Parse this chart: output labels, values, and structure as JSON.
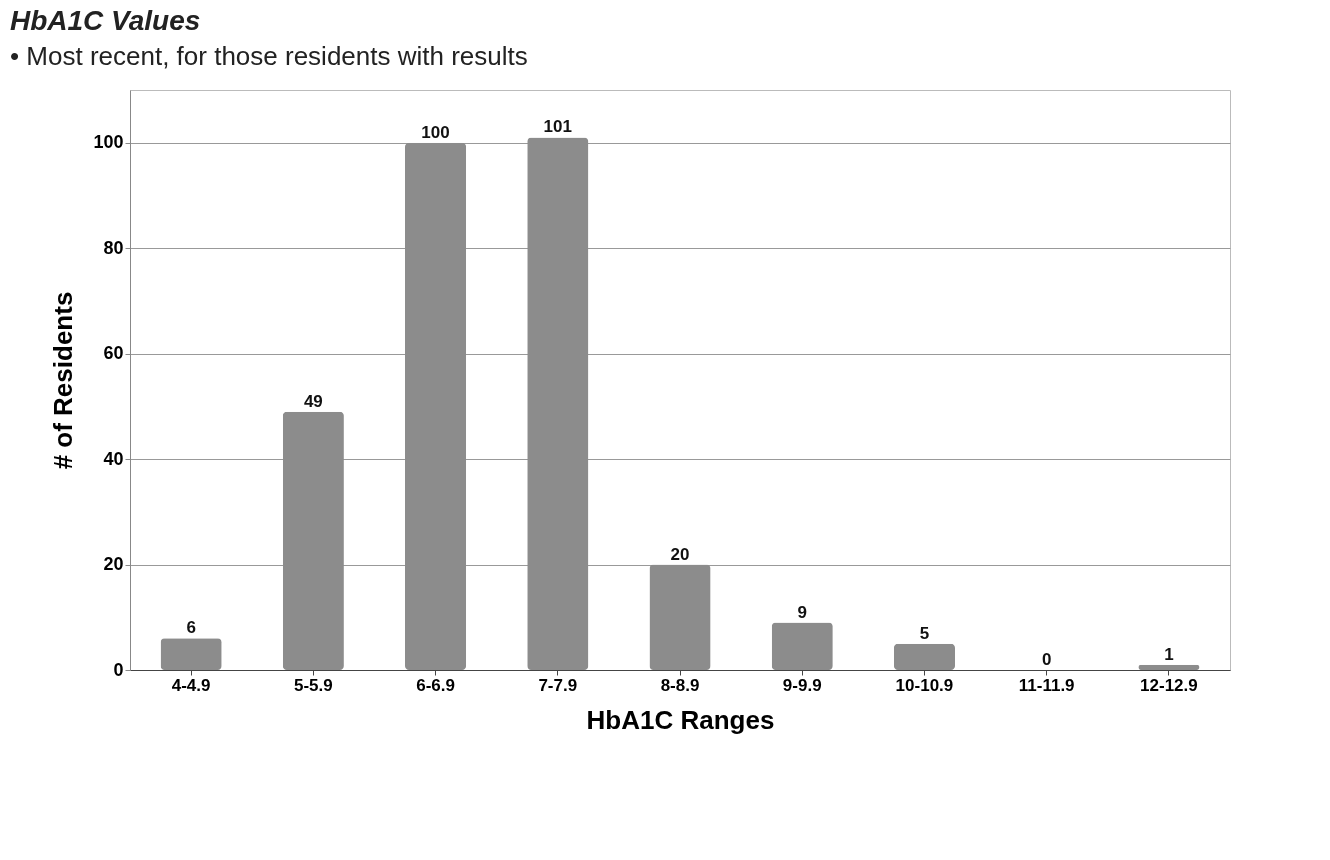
{
  "chart_data": {
    "type": "bar",
    "title": "HbA1C Values",
    "subtitle": "• Most recent, for those residents with results",
    "xlabel": "HbA1C Ranges",
    "ylabel": "# of Residents",
    "categories": [
      "4-4.9",
      "5-5.9",
      "6-6.9",
      "7-7.9",
      "8-8.9",
      "9-9.9",
      "10-10.9",
      "11-11.9",
      "12-12.9"
    ],
    "values": [
      6,
      49,
      100,
      101,
      20,
      9,
      5,
      0,
      1
    ],
    "color": "#8c8c8c",
    "ylim": [
      0,
      110
    ],
    "yticks": [
      0,
      20,
      40,
      60,
      80,
      100
    ],
    "grid": "y",
    "data_labels": true
  }
}
